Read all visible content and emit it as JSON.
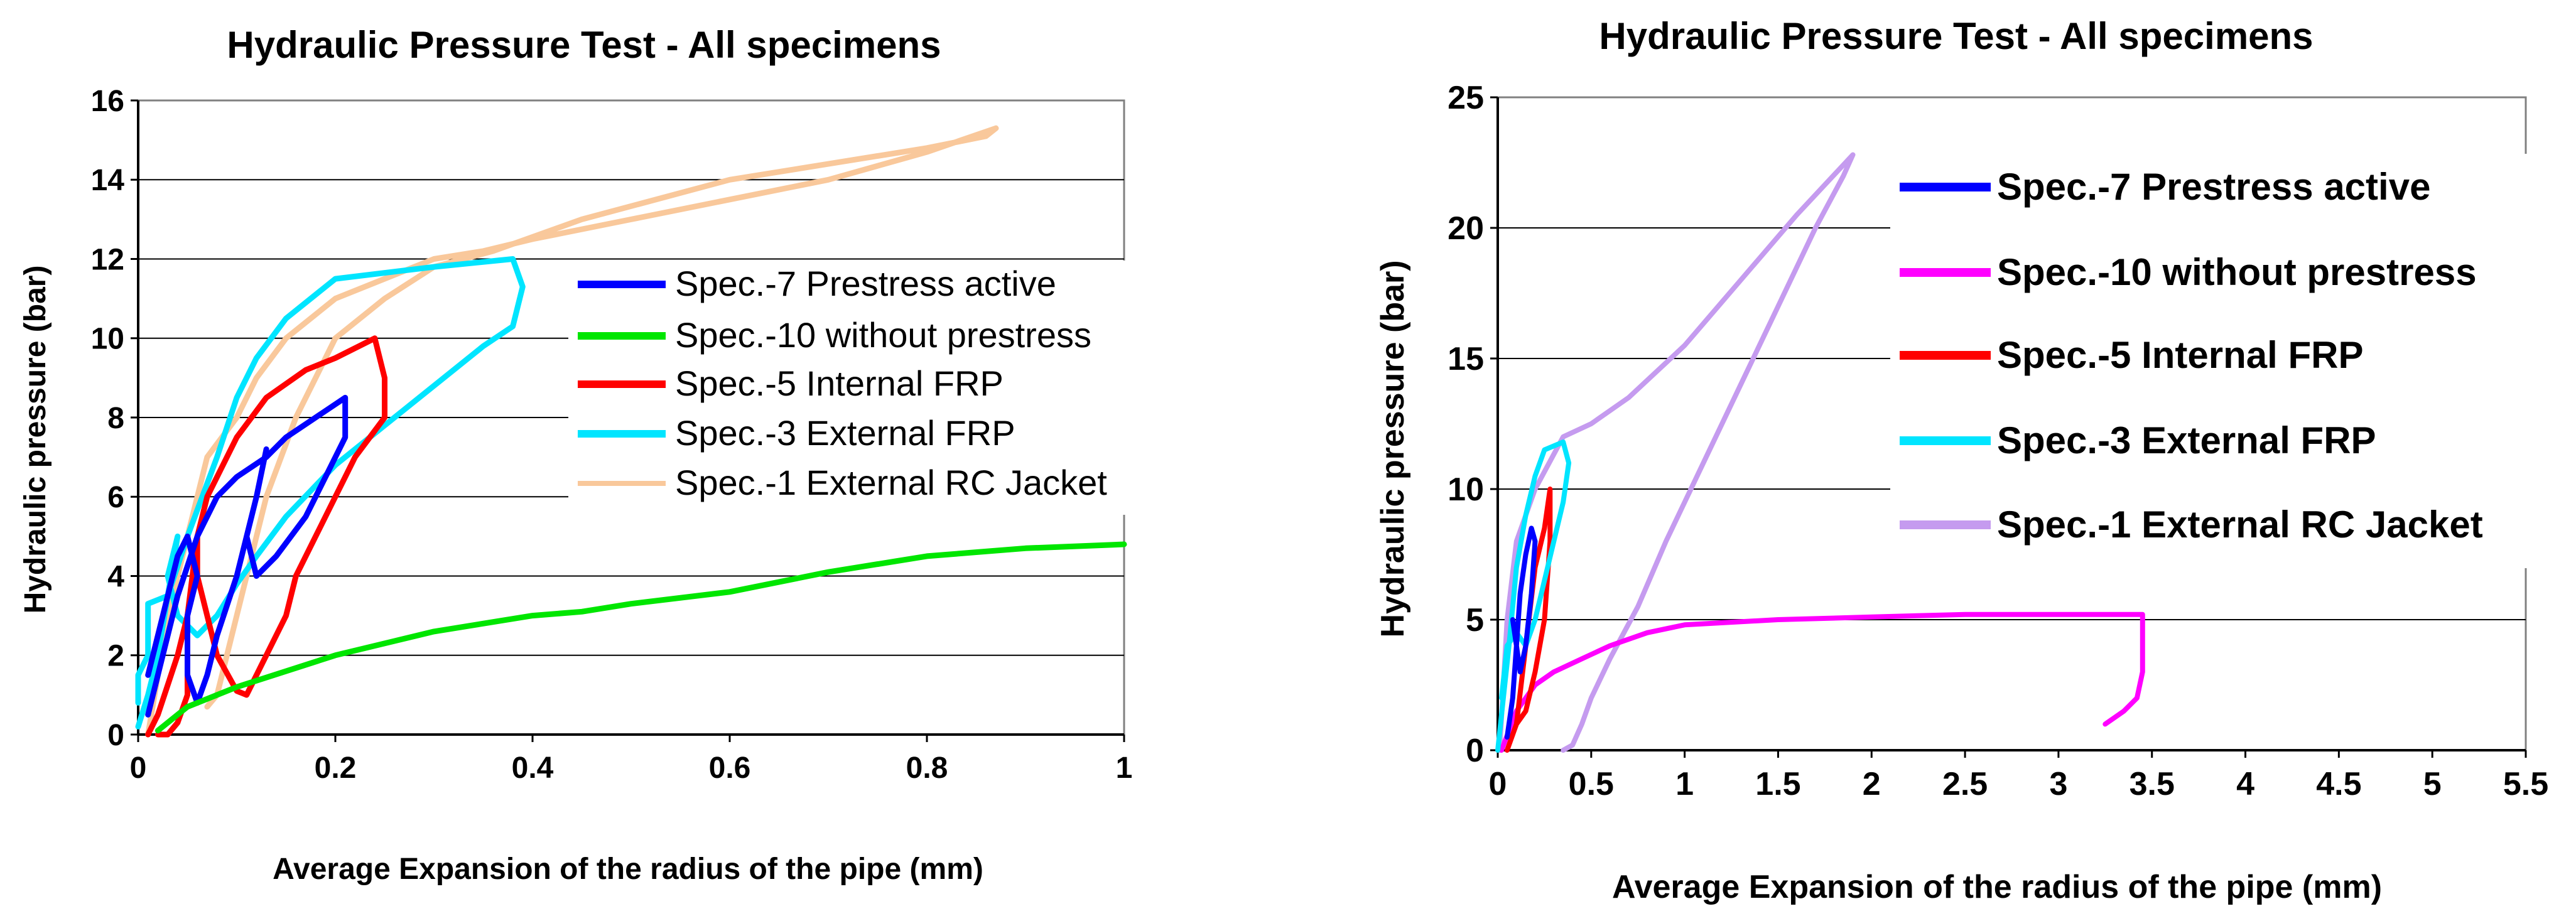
{
  "chart_data": [
    {
      "type": "line",
      "title": "Hydraulic Pressure Test -  All specimens",
      "xlabel": "Average Expansion of the radius of the pipe (mm)",
      "ylabel": "Hydraulic pressure (bar)",
      "xlim": [
        0,
        1
      ],
      "ylim": [
        0,
        16
      ],
      "x_ticks": [
        0,
        0.2,
        0.4,
        0.6,
        0.8,
        1
      ],
      "x_tick_labels": [
        "0",
        "0.2",
        "0.4",
        "0.6",
        "0.8",
        "1"
      ],
      "y_ticks": [
        0,
        2,
        4,
        6,
        8,
        10,
        12,
        14,
        16
      ],
      "y_tick_labels": [
        "0",
        "2",
        "4",
        "6",
        "8",
        "10",
        "12",
        "14",
        "16"
      ],
      "grid": "horizontal",
      "legend_position": "right",
      "series": [
        {
          "name": "Spec.-1 External RC Jacket",
          "color": "#f9c89b",
          "points": [
            [
              0.01,
              0
            ],
            [
              0.02,
              1.5
            ],
            [
              0.03,
              3
            ],
            [
              0.05,
              5
            ],
            [
              0.07,
              7
            ],
            [
              0.1,
              8
            ],
            [
              0.12,
              9
            ],
            [
              0.15,
              10
            ],
            [
              0.2,
              11
            ],
            [
              0.3,
              12
            ],
            [
              0.35,
              12.2
            ],
            [
              0.4,
              12.5
            ],
            [
              0.5,
              13
            ],
            [
              0.6,
              13.5
            ],
            [
              0.7,
              14
            ],
            [
              0.8,
              14.7
            ],
            [
              0.87,
              15.3
            ],
            [
              0.86,
              15.1
            ],
            [
              0.8,
              14.8
            ],
            [
              0.6,
              14
            ],
            [
              0.45,
              13
            ],
            [
              0.36,
              12.2
            ],
            [
              0.3,
              11.8
            ],
            [
              0.25,
              11
            ],
            [
              0.2,
              10
            ],
            [
              0.16,
              8
            ],
            [
              0.13,
              6
            ],
            [
              0.11,
              4
            ],
            [
              0.1,
              3
            ],
            [
              0.09,
              2
            ],
            [
              0.08,
              1
            ],
            [
              0.07,
              0.7
            ]
          ]
        },
        {
          "name": "Spec.-3 External FRP",
          "color": "#00e5ff",
          "points": [
            [
              0,
              0.2
            ],
            [
              0.01,
              1
            ],
            [
              0.02,
              2
            ],
            [
              0.03,
              3.5
            ],
            [
              0.05,
              5
            ],
            [
              0.08,
              7
            ],
            [
              0.1,
              8.5
            ],
            [
              0.12,
              9.5
            ],
            [
              0.15,
              10.5
            ],
            [
              0.2,
              11.5
            ],
            [
              0.3,
              11.8
            ],
            [
              0.38,
              12
            ],
            [
              0.39,
              11.3
            ],
            [
              0.38,
              10.3
            ],
            [
              0.35,
              9.8
            ],
            [
              0.3,
              8.8
            ],
            [
              0.25,
              7.8
            ],
            [
              0.2,
              6.8
            ],
            [
              0.15,
              5.5
            ],
            [
              0.12,
              4.5
            ],
            [
              0.1,
              3.8
            ],
            [
              0.08,
              3
            ],
            [
              0.06,
              2.5
            ],
            [
              0.04,
              3
            ],
            [
              0.03,
              4
            ],
            [
              0.04,
              5
            ],
            [
              0.03,
              3.5
            ],
            [
              0.01,
              3.3
            ],
            [
              0.01,
              2
            ],
            [
              0,
              1.5
            ],
            [
              0,
              0.8
            ]
          ]
        },
        {
          "name": "Spec.-5 Internal FRP",
          "color": "#ff0000",
          "points": [
            [
              0.01,
              0
            ],
            [
              0.02,
              0.5
            ],
            [
              0.04,
              2
            ],
            [
              0.05,
              3
            ],
            [
              0.06,
              5
            ],
            [
              0.07,
              6
            ],
            [
              0.1,
              7.5
            ],
            [
              0.13,
              8.5
            ],
            [
              0.17,
              9.2
            ],
            [
              0.2,
              9.5
            ],
            [
              0.24,
              10
            ],
            [
              0.25,
              9
            ],
            [
              0.25,
              8
            ],
            [
              0.22,
              7
            ],
            [
              0.2,
              6
            ],
            [
              0.18,
              5
            ],
            [
              0.16,
              4
            ],
            [
              0.15,
              3
            ],
            [
              0.13,
              2
            ],
            [
              0.11,
              1
            ],
            [
              0.1,
              1.1
            ],
            [
              0.08,
              2
            ],
            [
              0.07,
              3
            ],
            [
              0.06,
              4
            ],
            [
              0.06,
              5
            ],
            [
              0.05,
              3
            ],
            [
              0.05,
              1
            ],
            [
              0.04,
              0.3
            ],
            [
              0.03,
              0
            ],
            [
              0.02,
              0
            ]
          ]
        },
        {
          "name": "Spec.-7 Prestress active",
          "color": "#0000ff",
          "points": [
            [
              0.01,
              0.5
            ],
            [
              0.02,
              1.5
            ],
            [
              0.03,
              2.5
            ],
            [
              0.04,
              3.5
            ],
            [
              0.06,
              5
            ],
            [
              0.08,
              6
            ],
            [
              0.1,
              6.5
            ],
            [
              0.13,
              7
            ],
            [
              0.15,
              7.5
            ],
            [
              0.18,
              8
            ],
            [
              0.21,
              8.5
            ],
            [
              0.21,
              7.5
            ],
            [
              0.19,
              6.5
            ],
            [
              0.17,
              5.5
            ],
            [
              0.14,
              4.5
            ],
            [
              0.12,
              4
            ],
            [
              0.11,
              5
            ],
            [
              0.12,
              6
            ],
            [
              0.13,
              7.2
            ],
            [
              0.12,
              6
            ],
            [
              0.1,
              4
            ],
            [
              0.08,
              2.5
            ],
            [
              0.07,
              1.5
            ],
            [
              0.06,
              0.8
            ],
            [
              0.05,
              1.5
            ],
            [
              0.05,
              3
            ],
            [
              0.06,
              4
            ],
            [
              0.05,
              5
            ],
            [
              0.04,
              4.5
            ],
            [
              0.03,
              3.5
            ],
            [
              0.02,
              2.5
            ],
            [
              0.01,
              1.5
            ]
          ]
        },
        {
          "name": "Spec.-10 without prestress",
          "color": "#00e600",
          "points": [
            [
              0.02,
              0.1
            ],
            [
              0.05,
              0.7
            ],
            [
              0.1,
              1.2
            ],
            [
              0.2,
              2
            ],
            [
              0.3,
              2.6
            ],
            [
              0.4,
              3
            ],
            [
              0.45,
              3.1
            ],
            [
              0.5,
              3.3
            ],
            [
              0.6,
              3.6
            ],
            [
              0.7,
              4.1
            ],
            [
              0.8,
              4.5
            ],
            [
              0.9,
              4.7
            ],
            [
              1,
              4.8
            ]
          ]
        }
      ]
    },
    {
      "type": "line",
      "title": "Hydraulic Pressure Test -  All specimens",
      "xlabel": "Average Expansion of the radius of the pipe (mm)",
      "ylabel": "Hydraulic pressure (bar)",
      "xlim": [
        0,
        5.5
      ],
      "ylim": [
        0,
        25
      ],
      "x_ticks": [
        0,
        0.5,
        1,
        1.5,
        2,
        2.5,
        3,
        3.5,
        4,
        4.5,
        5,
        5.5
      ],
      "x_tick_labels": [
        "0",
        "0.5",
        "1",
        "1.5",
        "2",
        "2.5",
        "3",
        "3.5",
        "4",
        "4.5",
        "5",
        "5.5"
      ],
      "y_ticks": [
        0,
        5,
        10,
        15,
        20,
        25
      ],
      "y_tick_labels": [
        "0",
        "5",
        "10",
        "15",
        "20",
        "25"
      ],
      "grid": "horizontal",
      "legend_position": "right",
      "series": [
        {
          "name": "Spec.-1 External RC Jacket",
          "color": "#c59bef",
          "points": [
            [
              0.01,
              0
            ],
            [
              0.05,
              5
            ],
            [
              0.1,
              8
            ],
            [
              0.2,
              10
            ],
            [
              0.35,
              12
            ],
            [
              0.5,
              12.5
            ],
            [
              0.7,
              13.5
            ],
            [
              1,
              15.5
            ],
            [
              1.3,
              18
            ],
            [
              1.6,
              20.5
            ],
            [
              1.9,
              22.8
            ],
            [
              1.85,
              22
            ],
            [
              1.7,
              20
            ],
            [
              1.5,
              17
            ],
            [
              1.3,
              14
            ],
            [
              1.1,
              11
            ],
            [
              0.9,
              8
            ],
            [
              0.75,
              5.5
            ],
            [
              0.6,
              3.5
            ],
            [
              0.5,
              2
            ],
            [
              0.45,
              1
            ],
            [
              0.4,
              0.2
            ],
            [
              0.35,
              0
            ]
          ]
        },
        {
          "name": "Spec.-10 without prestress",
          "color": "#ff00ff",
          "points": [
            [
              0.02,
              0
            ],
            [
              0.1,
              1.5
            ],
            [
              0.2,
              2.5
            ],
            [
              0.3,
              3
            ],
            [
              0.45,
              3.5
            ],
            [
              0.6,
              4
            ],
            [
              0.8,
              4.5
            ],
            [
              1,
              4.8
            ],
            [
              1.5,
              5
            ],
            [
              2,
              5.1
            ],
            [
              2.5,
              5.2
            ],
            [
              3,
              5.2
            ],
            [
              3.45,
              5.2
            ],
            [
              3.45,
              4
            ],
            [
              3.45,
              3
            ],
            [
              3.42,
              2
            ],
            [
              3.35,
              1.5
            ],
            [
              3.25,
              1
            ]
          ]
        },
        {
          "name": "Spec.-5 Internal FRP",
          "color": "#ff0000",
          "points": [
            [
              0.05,
              0
            ],
            [
              0.1,
              1
            ],
            [
              0.15,
              4
            ],
            [
              0.2,
              7
            ],
            [
              0.25,
              8.5
            ],
            [
              0.28,
              10
            ],
            [
              0.28,
              8
            ],
            [
              0.25,
              5
            ],
            [
              0.2,
              3
            ],
            [
              0.15,
              1.5
            ],
            [
              0.1,
              1
            ]
          ]
        },
        {
          "name": "Spec.-3 External FRP",
          "color": "#00e5ff",
          "points": [
            [
              0,
              0
            ],
            [
              0.03,
              2
            ],
            [
              0.06,
              4
            ],
            [
              0.1,
              7
            ],
            [
              0.15,
              9
            ],
            [
              0.2,
              10.5
            ],
            [
              0.25,
              11.5
            ],
            [
              0.35,
              11.8
            ],
            [
              0.38,
              11
            ],
            [
              0.35,
              9.5
            ],
            [
              0.3,
              8
            ],
            [
              0.25,
              6.5
            ],
            [
              0.2,
              5
            ],
            [
              0.15,
              4
            ],
            [
              0.1,
              4.5
            ],
            [
              0.05,
              4
            ],
            [
              0.02,
              2
            ]
          ]
        },
        {
          "name": "Spec.-7 Prestress active",
          "color": "#0000ff",
          "points": [
            [
              0.05,
              0.5
            ],
            [
              0.08,
              2
            ],
            [
              0.1,
              4
            ],
            [
              0.12,
              6
            ],
            [
              0.15,
              7.5
            ],
            [
              0.18,
              8.5
            ],
            [
              0.2,
              8
            ],
            [
              0.18,
              6
            ],
            [
              0.15,
              4
            ],
            [
              0.12,
              3
            ],
            [
              0.1,
              4
            ],
            [
              0.08,
              5
            ]
          ]
        }
      ]
    }
  ]
}
